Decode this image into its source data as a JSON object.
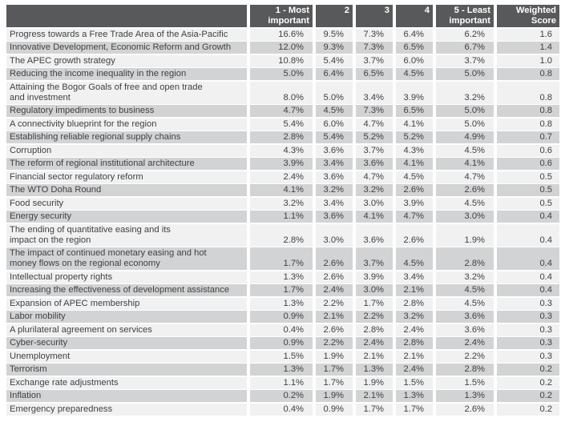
{
  "colors": {
    "header_bg": "#58595b",
    "header_text": "#ffffff",
    "row_light": "#f1f1f2",
    "row_dark": "#d1d3d4",
    "body_text": "#414042",
    "page_bg": "#ffffff"
  },
  "chart_data": {
    "type": "table",
    "title": "",
    "corner_label": "",
    "columns": [
      "1 - Most important",
      "2",
      "3",
      "4",
      "5 - Least important",
      "Weighted Score"
    ],
    "columns_display": [
      "1 - Most\nimportant",
      "2",
      "3",
      "4",
      "5 - Least\nimportant",
      "Weighted\nScore"
    ],
    "rows": [
      {
        "label": "Progress towards a Free Trade Area of the Asia-Pacific",
        "values": [
          "16.6%",
          "9.5%",
          "7.3%",
          "6.4%",
          "6.2%",
          "1.6"
        ]
      },
      {
        "label": "Innovative Development, Economic Reform and Growth",
        "values": [
          "12.0%",
          "9.3%",
          "7.3%",
          "6.5%",
          "6.7%",
          "1.4"
        ]
      },
      {
        "label": "The APEC growth strategy",
        "values": [
          "10.8%",
          "5.4%",
          "3.7%",
          "6.0%",
          "3.7%",
          "1.0"
        ]
      },
      {
        "label": "Reducing the income inequality in the region",
        "values": [
          "5.0%",
          "6.4%",
          "6.5%",
          "4.5%",
          "5.0%",
          "0.8"
        ]
      },
      {
        "label": "Attaining the Bogor Goals of free and open trade\nand investment",
        "values": [
          "8.0%",
          "5.0%",
          "3.4%",
          "3.9%",
          "3.2%",
          "0.8"
        ]
      },
      {
        "label": "Regulatory impediments to business",
        "values": [
          "4.7%",
          "4.5%",
          "7.3%",
          "6.5%",
          "5.0%",
          "0.8"
        ]
      },
      {
        "label": "A connectivity blueprint for the region",
        "values": [
          "5.4%",
          "6.0%",
          "4.7%",
          "4.1%",
          "5.0%",
          "0.8"
        ]
      },
      {
        "label": "Establishing reliable regional supply chains",
        "values": [
          "2.8%",
          "5.4%",
          "5.2%",
          "5.2%",
          "4.9%",
          "0.7"
        ]
      },
      {
        "label": "Corruption",
        "values": [
          "4.3%",
          "3.6%",
          "3.7%",
          "4.3%",
          "4.5%",
          "0.6"
        ]
      },
      {
        "label": "The reform of regional institutional architecture",
        "values": [
          "3.9%",
          "3.4%",
          "3.6%",
          "4.1%",
          "4.1%",
          "0.6"
        ]
      },
      {
        "label": "Financial sector regulatory reform",
        "values": [
          "2.4%",
          "3.6%",
          "4.7%",
          "4.5%",
          "4.7%",
          "0.5"
        ]
      },
      {
        "label": "The WTO Doha Round",
        "values": [
          "4.1%",
          "3.2%",
          "3.2%",
          "2.6%",
          "2.6%",
          "0.5"
        ]
      },
      {
        "label": "Food security",
        "values": [
          "3.2%",
          "3.4%",
          "3.0%",
          "3.9%",
          "4.5%",
          "0.5"
        ]
      },
      {
        "label": "Energy security",
        "values": [
          "1.1%",
          "3.6%",
          "4.1%",
          "4.7%",
          "3.0%",
          "0.4"
        ]
      },
      {
        "label": "The ending of quantitative easing and its\nimpact on the region",
        "values": [
          "2.8%",
          "3.0%",
          "3.6%",
          "2.6%",
          "1.9%",
          "0.4"
        ]
      },
      {
        "label": "The impact of continued monetary easing and hot\nmoney flows on the regional economy",
        "values": [
          "1.7%",
          "2.6%",
          "3.7%",
          "4.5%",
          "2.8%",
          "0.4"
        ]
      },
      {
        "label": "Intellectual property rights",
        "values": [
          "1.3%",
          "2.6%",
          "3.9%",
          "3.4%",
          "3.2%",
          "0.4"
        ]
      },
      {
        "label": "Increasing the effectiveness of development assistance",
        "values": [
          "1.7%",
          "2.4%",
          "3.0%",
          "2.1%",
          "4.5%",
          "0.4"
        ]
      },
      {
        "label": "Expansion of APEC membership",
        "values": [
          "1.3%",
          "2.2%",
          "1.7%",
          "2.8%",
          "4.5%",
          "0.3"
        ]
      },
      {
        "label": "Labor mobility",
        "values": [
          "0.9%",
          "2.1%",
          "2.2%",
          "3.2%",
          "3.6%",
          "0.3"
        ]
      },
      {
        "label": "A plurilateral agreement on services",
        "values": [
          "0.4%",
          "2.6%",
          "2.8%",
          "2.4%",
          "3.6%",
          "0.3"
        ]
      },
      {
        "label": "Cyber-security",
        "values": [
          "0.9%",
          "2.2%",
          "2.4%",
          "2.8%",
          "2.4%",
          "0.3"
        ]
      },
      {
        "label": "Unemployment",
        "values": [
          "1.5%",
          "1.9%",
          "2.1%",
          "2.1%",
          "2.2%",
          "0.3"
        ]
      },
      {
        "label": "Terrorism",
        "values": [
          "1.3%",
          "1.7%",
          "1.3%",
          "2.4%",
          "2.8%",
          "0.2"
        ]
      },
      {
        "label": "Exchange rate adjustments",
        "values": [
          "1.1%",
          "1.7%",
          "1.9%",
          "1.5%",
          "1.5%",
          "0.2"
        ]
      },
      {
        "label": "Inflation",
        "values": [
          "0.2%",
          "1.9%",
          "2.1%",
          "1.3%",
          "1.3%",
          "0.2"
        ]
      },
      {
        "label": "Emergency preparedness",
        "values": [
          "0.4%",
          "0.9%",
          "1.7%",
          "1.7%",
          "2.6%",
          "0.2"
        ]
      }
    ]
  }
}
